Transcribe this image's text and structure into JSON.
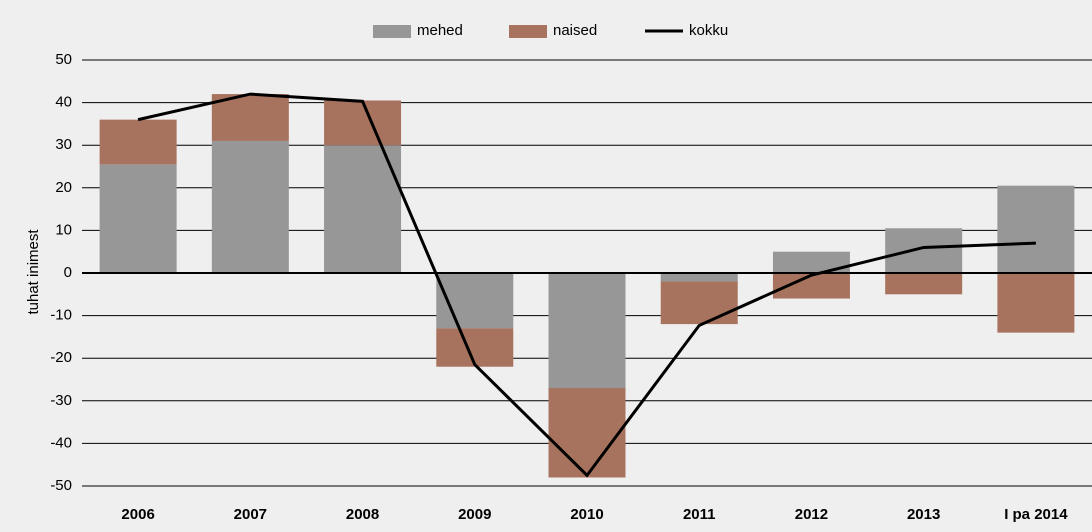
{
  "chart_data": {
    "type": "bar",
    "stacked": true,
    "y_label": "tuhat inimest",
    "categories": [
      "2006",
      "2007",
      "2008",
      "2009",
      "2010",
      "2011",
      "2012",
      "2013",
      "I pa 2014"
    ],
    "series": [
      {
        "name": "mehed",
        "type": "bar",
        "color": "#979797",
        "values": [
          25.5,
          31,
          30,
          -13,
          -27,
          -2,
          5,
          10.5,
          20.5
        ]
      },
      {
        "name": "naised",
        "type": "bar",
        "color": "#a8735e",
        "values": [
          10.5,
          11,
          10.5,
          -9,
          -21,
          -10,
          -6,
          -5,
          -14
        ]
      },
      {
        "name": "kokku",
        "type": "line",
        "color": "#000000",
        "values": [
          36,
          42,
          40.3,
          -21.5,
          -47.5,
          -12.3,
          -0.5,
          6,
          7
        ]
      }
    ],
    "ylim": [
      -50,
      50
    ],
    "yticks": [
      -50,
      -40,
      -30,
      -20,
      -10,
      0,
      10,
      20,
      30,
      40,
      50
    ],
    "grid": true,
    "legend": "top"
  }
}
